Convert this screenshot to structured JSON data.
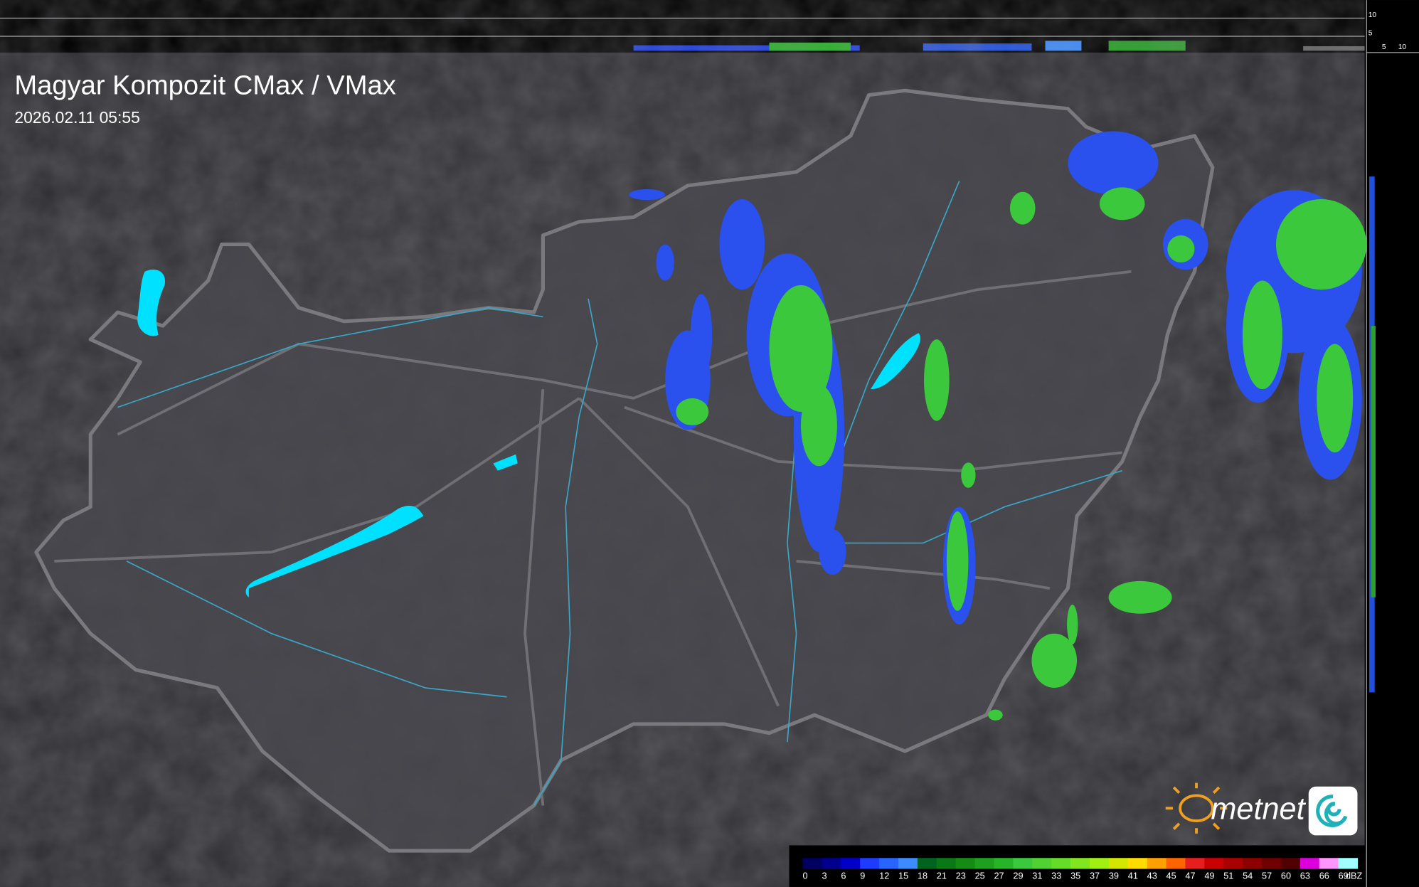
{
  "header": {
    "title": "Magyar Kompozit CMax / VMax",
    "timestamp": "2026.02.11 05:55"
  },
  "side_scale": {
    "top_labels": [
      "10",
      "5"
    ],
    "bottom_labels": [
      "5",
      "10"
    ]
  },
  "logo": {
    "text": "metnet"
  },
  "legend": {
    "unit": "dBZ",
    "items": [
      {
        "value": 0,
        "color": "#000060"
      },
      {
        "value": 3,
        "color": "#00008c"
      },
      {
        "value": 6,
        "color": "#0000c8"
      },
      {
        "value": 9,
        "color": "#1e3cff"
      },
      {
        "value": 12,
        "color": "#2864ff"
      },
      {
        "value": 15,
        "color": "#3c8cff"
      },
      {
        "value": 18,
        "color": "#00641e"
      },
      {
        "value": 21,
        "color": "#0a7814"
      },
      {
        "value": 23,
        "color": "#148c14"
      },
      {
        "value": 25,
        "color": "#1ea01e"
      },
      {
        "value": 27,
        "color": "#28b428"
      },
      {
        "value": 29,
        "color": "#3cc83c"
      },
      {
        "value": 31,
        "color": "#50d232"
      },
      {
        "value": 33,
        "color": "#64dc28"
      },
      {
        "value": 35,
        "color": "#82e61e"
      },
      {
        "value": 37,
        "color": "#a0f014"
      },
      {
        "value": 39,
        "color": "#d2e600"
      },
      {
        "value": 41,
        "color": "#ffdc00"
      },
      {
        "value": 43,
        "color": "#ffa000"
      },
      {
        "value": 45,
        "color": "#ff6400"
      },
      {
        "value": 47,
        "color": "#e61e1e"
      },
      {
        "value": 49,
        "color": "#c80000"
      },
      {
        "value": 51,
        "color": "#aa0000"
      },
      {
        "value": 54,
        "color": "#8c0000"
      },
      {
        "value": 57,
        "color": "#700000"
      },
      {
        "value": 60,
        "color": "#500000"
      },
      {
        "value": 63,
        "color": "#dc00dc"
      },
      {
        "value": 66,
        "color": "#ff96ff"
      },
      {
        "value": 69,
        "color": "#a0ffff"
      }
    ]
  }
}
